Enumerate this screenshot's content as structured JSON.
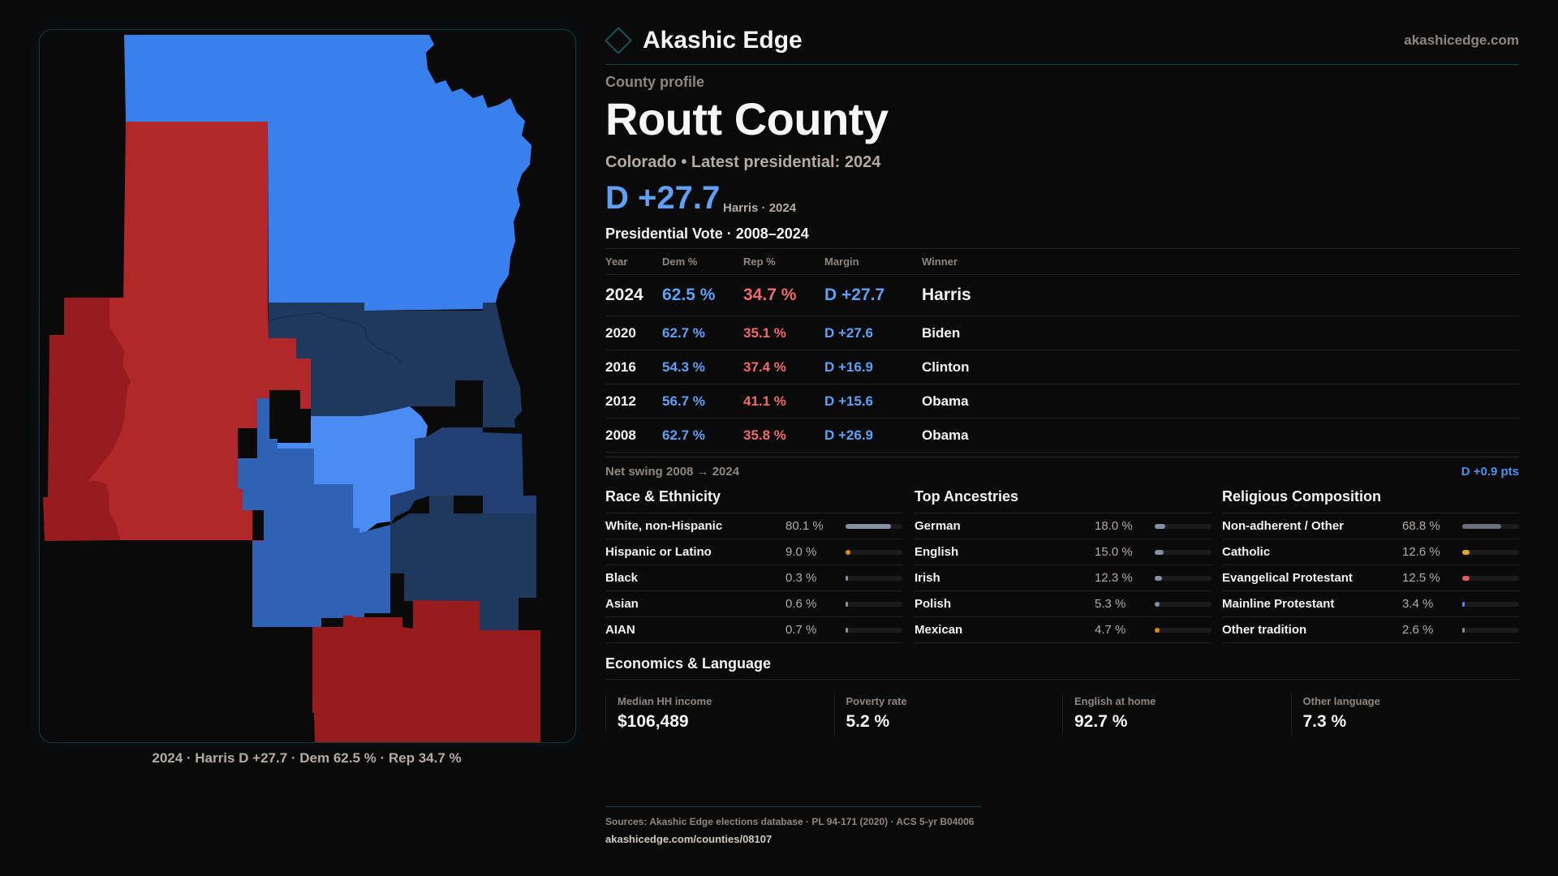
{
  "brand": {
    "name": "Akashic Edge",
    "site": "akashicedge.com",
    "logo_icon": "diamond-icon"
  },
  "header": {
    "kicker": "County profile",
    "title": "Routt County",
    "subtitle": "Colorado • Latest presidential: 2024",
    "margin": "D +27.7",
    "margin_note": "Harris · 2024"
  },
  "vote": {
    "title": "Presidential Vote · 2008–2024",
    "columns": [
      "Year",
      "Dem %",
      "Rep %",
      "Margin",
      "Winner"
    ],
    "rows": [
      {
        "year": "2024",
        "dem": "62.5 %",
        "rep": "34.7 %",
        "margin": "D +27.7",
        "winner": "Harris"
      },
      {
        "year": "2020",
        "dem": "62.7 %",
        "rep": "35.1 %",
        "margin": "D +27.6",
        "winner": "Biden"
      },
      {
        "year": "2016",
        "dem": "54.3 %",
        "rep": "37.4 %",
        "margin": "D +16.9",
        "winner": "Clinton"
      },
      {
        "year": "2012",
        "dem": "56.7 %",
        "rep": "41.1 %",
        "margin": "D +15.6",
        "winner": "Obama"
      },
      {
        "year": "2008",
        "dem": "62.7 %",
        "rep": "35.8 %",
        "margin": "D +26.9",
        "winner": "Obama"
      }
    ],
    "swing_label": "Net swing 2008 → 2024",
    "swing_value": "D +0.9 pts"
  },
  "race": {
    "title": "Race & Ethnicity",
    "items": [
      {
        "label": "White, non-Hispanic",
        "value": "80.1 %",
        "pct": 80.1,
        "color": "#8590a3"
      },
      {
        "label": "Hispanic or Latino",
        "value": "9.0 %",
        "pct": 9.0,
        "color": "#e08c0b"
      },
      {
        "label": "Black",
        "value": "0.3 %",
        "pct": 0.3,
        "color": "#8590a3"
      },
      {
        "label": "Asian",
        "value": "0.6 %",
        "pct": 0.6,
        "color": "#8590a3"
      },
      {
        "label": "AIAN",
        "value": "0.7 %",
        "pct": 0.7,
        "color": "#8590a3"
      }
    ]
  },
  "ancestry": {
    "title": "Top Ancestries",
    "items": [
      {
        "label": "German",
        "value": "18.0 %",
        "pct": 18.0,
        "color": "#8590a3"
      },
      {
        "label": "English",
        "value": "15.0 %",
        "pct": 15.0,
        "color": "#8590a3"
      },
      {
        "label": "Irish",
        "value": "12.3 %",
        "pct": 12.3,
        "color": "#8590a3"
      },
      {
        "label": "Polish",
        "value": "5.3 %",
        "pct": 5.3,
        "color": "#8590a3"
      },
      {
        "label": "Mexican",
        "value": "4.7 %",
        "pct": 4.7,
        "color": "#e08c0b"
      }
    ]
  },
  "religion": {
    "title": "Religious Composition",
    "items": [
      {
        "label": "Non-adherent / Other",
        "value": "68.8 %",
        "pct": 68.8,
        "color": "#6b6f7c"
      },
      {
        "label": "Catholic",
        "value": "12.6 %",
        "pct": 12.6,
        "color": "#e0a81a"
      },
      {
        "label": "Evangelical Protestant",
        "value": "12.5 %",
        "pct": 12.5,
        "color": "#e05a5a"
      },
      {
        "label": "Mainline Protestant",
        "value": "3.4 %",
        "pct": 3.4,
        "color": "#4a90f0"
      },
      {
        "label": "Other tradition",
        "value": "2.6 %",
        "pct": 2.6,
        "color": "#8a8a90"
      }
    ]
  },
  "economics": {
    "title": "Economics & Language",
    "items": [
      {
        "label": "Median HH income",
        "value": "$106,489"
      },
      {
        "label": "Poverty rate",
        "value": "5.2 %"
      },
      {
        "label": "English at home",
        "value": "92.7 %"
      },
      {
        "label": "Other language",
        "value": "7.3 %"
      }
    ]
  },
  "map": {
    "caption": "2024 · Harris D +27.7 · Dem 62.5 % · Rep 34.7 %",
    "colors": {
      "dem_light": "#3a80ec",
      "dem_lighter": "#4a8cf4",
      "dem_mid": "#2e62b5",
      "dem_dark": "#223f74",
      "dem_darker": "#1e385e",
      "rep": "#b2282a",
      "rep_dark": "#981b1e"
    }
  },
  "footer": {
    "sources": "Sources: Akashic Edge elections database · PL 94-171 (2020) · ACS 5-yr B04006",
    "url": "akashicedge.com/counties/08107"
  }
}
